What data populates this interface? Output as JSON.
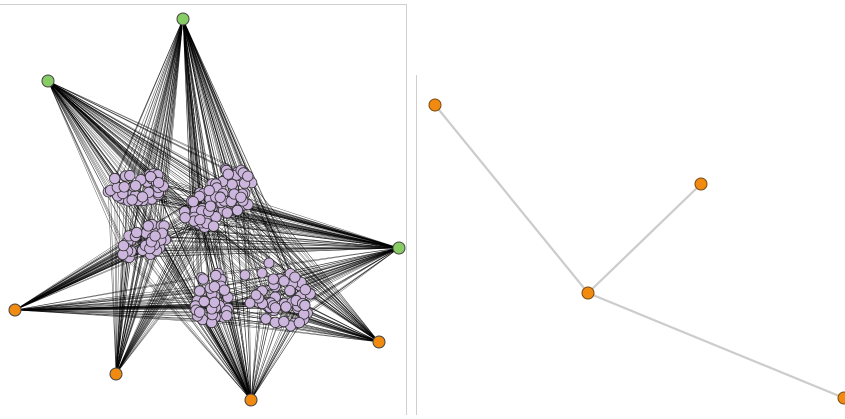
{
  "left_graph": {
    "colors": {
      "edge": "#000000",
      "cluster_node_fill": "#cdb6dd",
      "cluster_node_stroke": "#333333",
      "hub_green": "#88cc66",
      "hub_orange": "#f08a10",
      "hub_stroke": "#444444"
    },
    "hubs": [
      {
        "id": "g1",
        "color": "green"
      },
      {
        "id": "g2",
        "color": "green"
      },
      {
        "id": "g3",
        "color": "green"
      },
      {
        "id": "o1",
        "color": "orange"
      },
      {
        "id": "o2",
        "color": "orange"
      },
      {
        "id": "o3",
        "color": "orange"
      },
      {
        "id": "o4",
        "color": "orange"
      }
    ],
    "clusters": [
      {
        "id": "c1"
      },
      {
        "id": "c2"
      },
      {
        "id": "c3"
      },
      {
        "id": "c4"
      },
      {
        "id": "c5"
      },
      {
        "id": "c6"
      }
    ]
  },
  "right_graph": {
    "colors": {
      "edge": "#cccccc",
      "node_fill": "#f08a10",
      "node_stroke": "#7a4a10"
    },
    "nodes": [
      {
        "id": "n1"
      },
      {
        "id": "n2"
      },
      {
        "id": "center"
      },
      {
        "id": "n3"
      }
    ],
    "edges": [
      [
        "center",
        "n1"
      ],
      [
        "center",
        "n2"
      ],
      [
        "center",
        "n3"
      ]
    ]
  }
}
